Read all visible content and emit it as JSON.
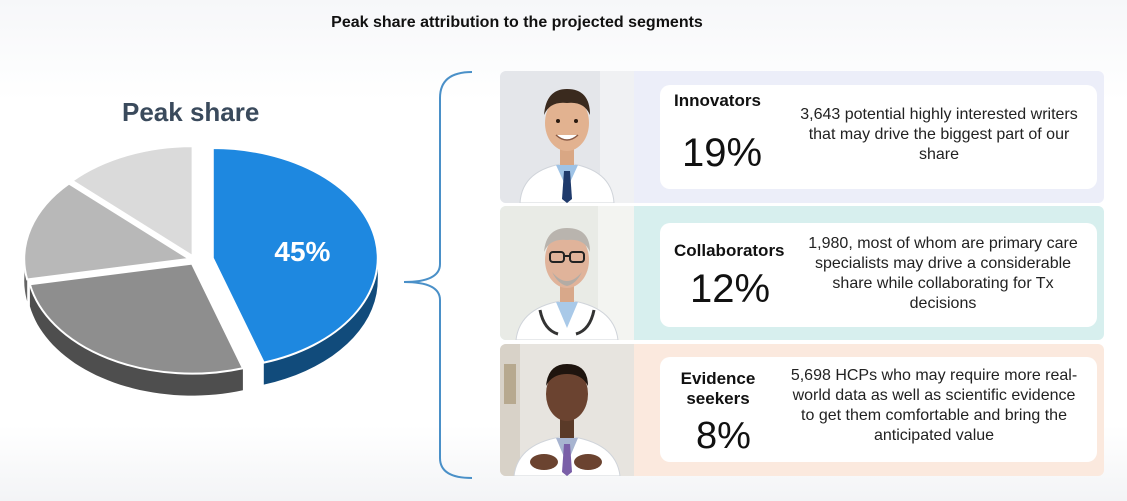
{
  "title": "Peak share attribution to the projected segments",
  "chart_data": {
    "type": "pie",
    "title": "Peak share",
    "highlight_label": "45%",
    "slices": [
      {
        "value": 45,
        "color": "#1e88e0",
        "highlighted": true
      },
      {
        "value": 27,
        "color": "#8e8e8e"
      },
      {
        "value": 15,
        "color": "#b8b8b8"
      },
      {
        "value": 13,
        "color": "#dadada"
      }
    ]
  },
  "segments": [
    {
      "name": "Innovators",
      "pct": "19%",
      "description": "3,643 potential highly interested writers that may drive the biggest part of our share",
      "photo_icon": "doctor-smiling-photo"
    },
    {
      "name": "Collaborators",
      "pct": "12%",
      "description": "1,980, most of whom are primary care specialists may drive a considerable share while collaborating for Tx decisions",
      "photo_icon": "doctor-glasses-photo"
    },
    {
      "name": "Evidence seekers",
      "pct": "8%",
      "description": "5,698 HCPs who may require more real-world data as well as scientific evidence to get them comfortable and bring the anticipated value",
      "photo_icon": "doctor-gesturing-photo"
    }
  ],
  "colors": {
    "accent": "#1e88e0",
    "card1": "#eceef9",
    "card2": "#d7efee",
    "card3": "#fbe9de",
    "brace": "#4a90c8"
  }
}
